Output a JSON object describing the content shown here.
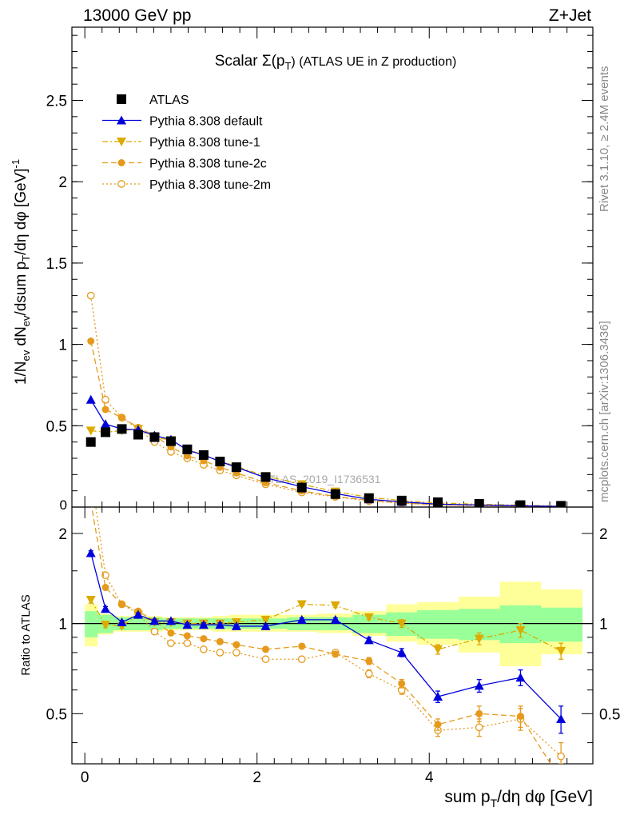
{
  "header": {
    "left": "13000 GeV pp",
    "right": "Z+Jet"
  },
  "side_labels": {
    "rivet": "Rivet 3.1.10, ≥ 2.4M events",
    "mcplots": "mcplots.cern.ch [arXiv:1306.3436]"
  },
  "watermark": "ATLAS_2019_I1736531",
  "chart_data": [
    {
      "type": "scatter",
      "title": "Scalar Σ(p_T) (ATLAS UE in Z production)",
      "title_parts": {
        "pre": "Scalar Σ(p",
        "sub": "T",
        "post": ") (ATLAS UE in Z production)"
      },
      "ylabel": "1/N_ev dN_ev/dsum p_T/dη dφ [GeV]^-1",
      "xlim": [
        -0.15,
        5.9
      ],
      "ylim": [
        0,
        2.95
      ],
      "yticks": [
        0.5,
        1,
        1.5,
        2,
        2.5
      ],
      "ytick_labels": [
        "0.5",
        "1",
        "1.5",
        "2",
        "2.5"
      ],
      "y_zero_label": "0",
      "grid": false,
      "legend_position": "top-left",
      "x": [
        0.07,
        0.24,
        0.43,
        0.62,
        0.81,
        1.0,
        1.19,
        1.38,
        1.57,
        1.76,
        2.1,
        2.52,
        2.91,
        3.3,
        3.68,
        4.1,
        4.58,
        5.06,
        5.53
      ],
      "series": [
        {
          "name": "ATLAS",
          "key": "atlas",
          "color": "#000000",
          "marker": "square",
          "line": "none",
          "values": [
            0.4,
            0.46,
            0.48,
            0.445,
            0.43,
            0.405,
            0.355,
            0.32,
            0.28,
            0.245,
            0.185,
            0.12,
            0.08,
            0.055,
            0.04,
            0.03,
            0.02,
            0.012,
            0.008
          ]
        },
        {
          "name": "Pythia 8.308 default",
          "key": "default",
          "color": "#0000dd",
          "marker": "triangle-up",
          "line": "solid",
          "values": [
            0.66,
            0.51,
            0.48,
            0.475,
            0.44,
            0.415,
            0.35,
            0.32,
            0.28,
            0.245,
            0.18,
            0.125,
            0.083,
            0.048,
            0.032,
            0.018,
            0.013,
            0.008,
            0.004
          ]
        },
        {
          "name": "Pythia 8.308 tune-1",
          "key": "tune1",
          "color": "#ddaa00",
          "marker": "triangle-down",
          "line": "dashdot",
          "values": [
            0.47,
            0.46,
            0.47,
            0.48,
            0.43,
            0.41,
            0.355,
            0.32,
            0.285,
            0.25,
            0.19,
            0.14,
            0.095,
            0.06,
            0.04,
            0.025,
            0.018,
            0.011,
            0.007
          ]
        },
        {
          "name": "Pythia 8.308 tune-2c",
          "key": "tune2c",
          "color": "#e59a1c",
          "marker": "circle",
          "line": "dashed",
          "values": [
            1.02,
            0.6,
            0.55,
            0.49,
            0.44,
            0.37,
            0.315,
            0.285,
            0.245,
            0.21,
            0.15,
            0.1,
            0.065,
            0.042,
            0.025,
            0.014,
            0.01,
            0.006,
            0.003
          ]
        },
        {
          "name": "Pythia 8.308 tune-2m",
          "key": "tune2m",
          "color": "#e59a1c",
          "marker": "circle-open",
          "line": "dotted",
          "values": [
            1.3,
            0.66,
            0.55,
            0.48,
            0.4,
            0.34,
            0.3,
            0.26,
            0.225,
            0.195,
            0.14,
            0.09,
            0.063,
            0.037,
            0.024,
            0.013,
            0.009,
            0.006,
            0.003
          ]
        }
      ]
    },
    {
      "type": "line",
      "ylabel": "Ratio to ATLAS",
      "xlabel": "sum p_T/dη dφ [GeV]",
      "xlabel_parts": {
        "pre": "sum p",
        "sub": "T",
        "post": "/dη dφ [GeV]"
      },
      "xlim": [
        -0.15,
        5.9
      ],
      "ylim": [
        0.34,
        2.45
      ],
      "log_y": true,
      "xticks": [
        0,
        2,
        4
      ],
      "xtick_labels": [
        "0",
        "2",
        "4"
      ],
      "yticks": [
        0.5,
        1,
        2
      ],
      "ytick_labels": [
        "0.5",
        "1",
        "2"
      ],
      "reference_line": 1,
      "bands": {
        "x_edges": [
          0.0,
          0.15,
          0.33,
          0.52,
          0.71,
          0.9,
          1.1,
          1.29,
          1.48,
          1.67,
          1.86,
          2.35,
          2.7,
          3.11,
          3.5,
          3.86,
          4.34,
          4.82,
          5.3,
          5.78
        ],
        "stat": {
          "color": "#99ff99",
          "lo": [
            0.9,
            0.93,
            0.95,
            0.95,
            0.95,
            0.96,
            0.96,
            0.96,
            0.96,
            0.96,
            0.96,
            0.95,
            0.95,
            0.93,
            0.91,
            0.89,
            0.88,
            0.86,
            0.87
          ],
          "hi": [
            1.1,
            1.07,
            1.05,
            1.05,
            1.05,
            1.04,
            1.04,
            1.04,
            1.04,
            1.04,
            1.04,
            1.05,
            1.05,
            1.07,
            1.09,
            1.11,
            1.12,
            1.15,
            1.13
          ]
        },
        "total": {
          "color": "#ffff99",
          "lo": [
            0.84,
            0.92,
            0.94,
            0.94,
            0.94,
            0.95,
            0.95,
            0.95,
            0.94,
            0.94,
            0.94,
            0.94,
            0.93,
            0.91,
            0.87,
            0.85,
            0.8,
            0.72,
            0.79
          ],
          "hi": [
            1.16,
            1.08,
            1.06,
            1.06,
            1.06,
            1.05,
            1.05,
            1.05,
            1.06,
            1.07,
            1.07,
            1.07,
            1.08,
            1.1,
            1.16,
            1.18,
            1.23,
            1.38,
            1.3
          ]
        }
      },
      "x": [
        0.07,
        0.24,
        0.43,
        0.62,
        0.81,
        1.0,
        1.19,
        1.38,
        1.57,
        1.76,
        2.1,
        2.52,
        2.91,
        3.3,
        3.68,
        4.1,
        4.58,
        5.06,
        5.53
      ],
      "series": [
        {
          "key": "default",
          "color": "#0000dd",
          "marker": "triangle-up",
          "line": "solid",
          "values": [
            1.72,
            1.12,
            1.01,
            1.07,
            1.02,
            1.02,
            0.99,
            0.99,
            0.99,
            0.98,
            0.98,
            1.03,
            1.03,
            0.88,
            0.8,
            0.57,
            0.62,
            0.66,
            0.48
          ],
          "errors": [
            0.03,
            0.02,
            0.015,
            0.015,
            0.015,
            0.015,
            0.015,
            0.015,
            0.015,
            0.015,
            0.015,
            0.015,
            0.015,
            0.02,
            0.025,
            0.025,
            0.03,
            0.04,
            0.05
          ]
        },
        {
          "key": "tune1",
          "color": "#ddaa00",
          "marker": "triangle-down",
          "line": "dashdot",
          "values": [
            1.2,
            0.99,
            0.98,
            1.07,
            1.01,
            1.01,
            1.0,
            1.0,
            1.0,
            1.01,
            1.03,
            1.16,
            1.15,
            1.05,
            1.0,
            0.82,
            0.89,
            0.95,
            0.81
          ],
          "errors": [
            0.03,
            0.02,
            0.015,
            0.015,
            0.015,
            0.015,
            0.015,
            0.015,
            0.015,
            0.015,
            0.015,
            0.015,
            0.02,
            0.02,
            0.03,
            0.03,
            0.04,
            0.05,
            0.05
          ]
        },
        {
          "key": "tune2c",
          "color": "#e59a1c",
          "marker": "circle",
          "line": "dashed",
          "values": [
            2.55,
            1.32,
            1.16,
            1.1,
            1.02,
            0.93,
            0.91,
            0.89,
            0.87,
            0.85,
            0.82,
            0.84,
            0.79,
            0.75,
            0.63,
            0.46,
            0.5,
            0.49,
            0.3
          ],
          "errors": [
            0.04,
            0.02,
            0.015,
            0.015,
            0.015,
            0.015,
            0.015,
            0.015,
            0.015,
            0.015,
            0.015,
            0.015,
            0.015,
            0.02,
            0.02,
            0.02,
            0.03,
            0.04,
            0.04
          ]
        },
        {
          "key": "tune2m",
          "color": "#e59a1c",
          "marker": "circle-open",
          "line": "dotted",
          "values": [
            3.2,
            1.45,
            1.16,
            1.08,
            0.94,
            0.86,
            0.86,
            0.82,
            0.8,
            0.8,
            0.76,
            0.76,
            0.8,
            0.68,
            0.6,
            0.44,
            0.45,
            0.48,
            0.36
          ],
          "errors": [
            0.05,
            0.03,
            0.015,
            0.015,
            0.015,
            0.015,
            0.015,
            0.015,
            0.015,
            0.015,
            0.015,
            0.015,
            0.015,
            0.02,
            0.02,
            0.02,
            0.03,
            0.04,
            0.04
          ]
        }
      ]
    }
  ]
}
